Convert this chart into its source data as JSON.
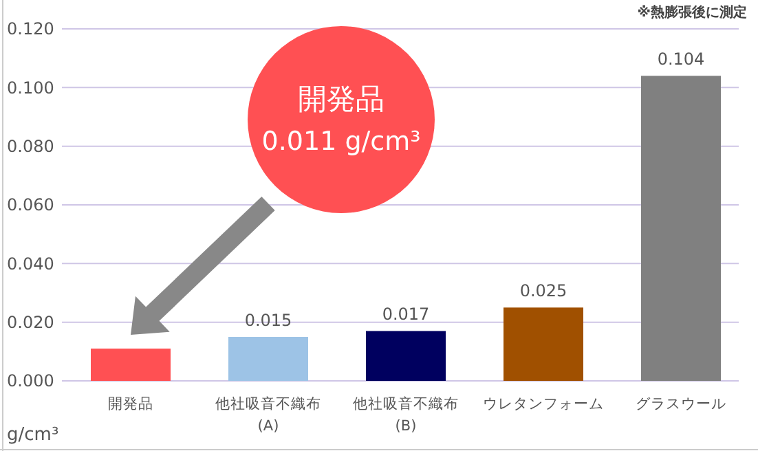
{
  "chart_data": {
    "type": "bar",
    "ylabel": "g/cm³",
    "categories": [
      "開発品",
      "他社吸音不織布\n(A)",
      "他社吸音不織布\n(B)",
      "ウレタンフォーム",
      "グラスウール"
    ],
    "values": [
      0.011,
      0.015,
      0.017,
      0.025,
      0.104
    ],
    "colors": [
      "#ff5053",
      "#9dc3e6",
      "#00005f",
      "#a05000",
      "#808080"
    ],
    "value_labels": [
      null,
      "0.015",
      "0.017",
      "0.025",
      "0.104"
    ],
    "ylim": [
      0,
      0.12
    ],
    "yticks": [
      {
        "value": 0,
        "label": "0.000"
      },
      {
        "value": 0.02,
        "label": "0.020"
      },
      {
        "value": 0.04,
        "label": "0.040"
      },
      {
        "value": 0.06,
        "label": "0.060"
      },
      {
        "value": 0.08,
        "label": "0.080"
      },
      {
        "value": 0.1,
        "label": "0.100"
      },
      {
        "value": 0.12,
        "label": "0.120"
      }
    ],
    "grid": "y",
    "annotations": [
      "開発品\n0.011 g/cm³",
      "※熱膨張後に測定"
    ]
  }
}
